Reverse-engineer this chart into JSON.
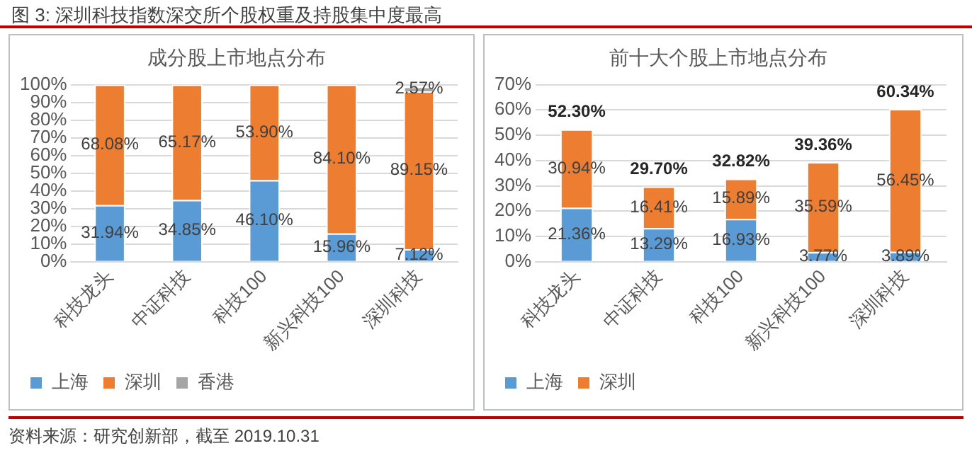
{
  "chart_data": [
    {
      "type": "bar",
      "title": "图 3: 深圳科技指数深交所个股权重及持股集中度最高",
      "subtitle": "成分股上市地点分布",
      "categories": [
        "科技龙头",
        "中证科技",
        "科技100",
        "新兴科技100",
        "深圳科技"
      ],
      "stacked": true,
      "series": [
        {
          "name": "上海",
          "color": "#5b9bd5",
          "values": [
            31.94,
            34.85,
            46.1,
            15.96,
            7.12
          ],
          "value_labels": [
            "31.94%",
            "34.85%",
            "46.10%",
            "15.96%",
            "7.12%"
          ]
        },
        {
          "name": "深圳",
          "color": "#ed7d31",
          "values": [
            68.08,
            65.17,
            53.9,
            84.1,
            89.15
          ],
          "value_labels": [
            "68.08%",
            "65.17%",
            "53.90%",
            "84.10%",
            "89.15%"
          ]
        },
        {
          "name": "香港",
          "color": "#a5a5a5",
          "values": [
            null,
            null,
            null,
            null,
            2.57
          ],
          "value_labels": [
            null,
            null,
            null,
            null,
            "2.57%"
          ]
        }
      ],
      "ylim": [
        0,
        100
      ],
      "yticks": [
        {
          "value": 0,
          "label": "0%"
        },
        {
          "value": 10,
          "label": "10%"
        },
        {
          "value": 20,
          "label": "20%"
        },
        {
          "value": 30,
          "label": "30%"
        },
        {
          "value": 40,
          "label": "40%"
        },
        {
          "value": 50,
          "label": "50%"
        },
        {
          "value": 60,
          "label": "60%"
        },
        {
          "value": 70,
          "label": "70%"
        },
        {
          "value": 80,
          "label": "80%"
        },
        {
          "value": 90,
          "label": "90%"
        },
        {
          "value": 100,
          "label": "100%"
        }
      ],
      "grid": "y",
      "legend": "bottom left",
      "annotations": [
        "资料来源：研究创新部，截至 2019.10.31"
      ]
    },
    {
      "type": "bar",
      "title": "前十大个股上市地点分布",
      "categories": [
        "科技龙头",
        "中证科技",
        "科技100",
        "新兴科技100",
        "深圳科技"
      ],
      "stacked": true,
      "series": [
        {
          "name": "上海",
          "color": "#5b9bd5",
          "values": [
            21.36,
            13.29,
            16.93,
            3.77,
            3.89
          ],
          "value_labels": [
            "21.36%",
            "13.29%",
            "16.93%",
            "3.77%",
            "3.89%"
          ]
        },
        {
          "name": "深圳",
          "color": "#ed7d31",
          "values": [
            30.94,
            16.41,
            15.89,
            35.59,
            56.45
          ],
          "value_labels": [
            "30.94%",
            "16.41%",
            "15.89%",
            "35.59%",
            "56.45%"
          ]
        }
      ],
      "totals": [
        "52.30%",
        "29.70%",
        "32.82%",
        "39.36%",
        "60.34%"
      ],
      "ylim": [
        0,
        70
      ],
      "yticks": [
        {
          "value": 0,
          "label": "0%"
        },
        {
          "value": 10,
          "label": "10%"
        },
        {
          "value": 20,
          "label": "20%"
        },
        {
          "value": 30,
          "label": "30%"
        },
        {
          "value": 40,
          "label": "40%"
        },
        {
          "value": 50,
          "label": "50%"
        },
        {
          "value": 60,
          "label": "60%"
        },
        {
          "value": 70,
          "label": "70%"
        }
      ],
      "grid": "y",
      "legend": "bottom left"
    }
  ]
}
